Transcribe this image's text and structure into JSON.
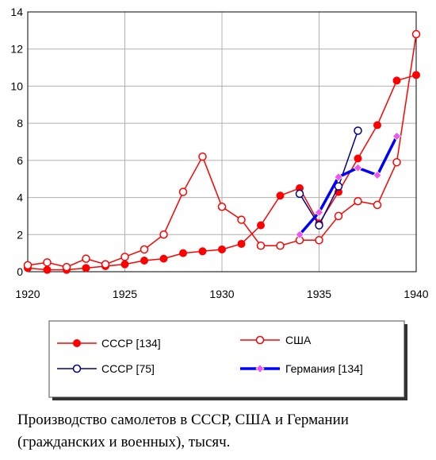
{
  "chart_data": {
    "type": "line",
    "title": "",
    "xlabel": "",
    "ylabel": "",
    "xlim": [
      1920,
      1940
    ],
    "ylim": [
      0,
      14
    ],
    "x_ticks": [
      1920,
      1925,
      1930,
      1935,
      1940
    ],
    "y_ticks": [
      0,
      2,
      4,
      6,
      8,
      10,
      12,
      14
    ],
    "grid": true,
    "legend_position": "bottom",
    "series": [
      {
        "name": "СССР [134]",
        "color": "#ff0000",
        "marker": "filled-circle",
        "x": [
          1920,
          1921,
          1922,
          1923,
          1924,
          1925,
          1926,
          1927,
          1928,
          1929,
          1930,
          1931,
          1932,
          1933,
          1934,
          1935,
          1936,
          1937,
          1938,
          1939,
          1940
        ],
        "y": [
          0.2,
          0.1,
          0.1,
          0.2,
          0.3,
          0.4,
          0.6,
          0.7,
          1.0,
          1.1,
          1.2,
          1.5,
          2.5,
          4.1,
          4.5,
          2.6,
          4.3,
          6.1,
          7.9,
          10.3,
          10.6
        ]
      },
      {
        "name": "США",
        "color": "#ff0000",
        "marker": "open-circle",
        "x": [
          1920,
          1921,
          1922,
          1923,
          1924,
          1925,
          1926,
          1927,
          1928,
          1929,
          1930,
          1931,
          1932,
          1933,
          1934,
          1935,
          1936,
          1937,
          1938,
          1939,
          1940
        ],
        "y": [
          0.35,
          0.5,
          0.25,
          0.7,
          0.4,
          0.8,
          1.2,
          2.0,
          4.3,
          6.2,
          3.5,
          2.8,
          1.4,
          1.4,
          1.7,
          1.7,
          3.0,
          3.8,
          3.6,
          5.9,
          12.8
        ]
      },
      {
        "name": "СССР [75]",
        "color": "#00008b",
        "marker": "open-circle",
        "x": [
          1934,
          1935,
          1936,
          1937
        ],
        "y": [
          4.2,
          2.5,
          4.6,
          7.6
        ]
      },
      {
        "name": "Германия [134]",
        "color": "#0000ff",
        "marker": "diamond",
        "x": [
          1934,
          1935,
          1936,
          1937,
          1938,
          1939
        ],
        "y": [
          2.0,
          3.2,
          5.1,
          5.6,
          5.2,
          7.3
        ]
      }
    ]
  },
  "caption": {
    "line1": "Производство самолетов  в СССР, США и Германии",
    "line2": "(гражданских и военных), тысяч."
  }
}
